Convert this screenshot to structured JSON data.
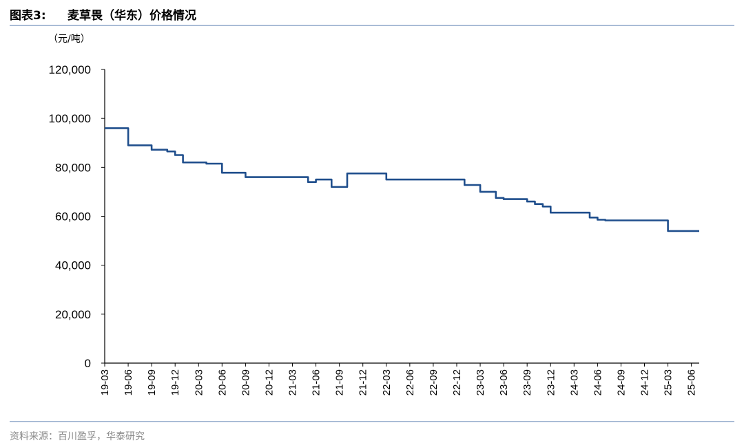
{
  "header": {
    "figure_number": "图表3:",
    "title": "麦草畏（华东）价格情况"
  },
  "footer": {
    "source": "资料来源：百川盈孚，华泰研究"
  },
  "chart_data": {
    "type": "line",
    "title": "麦草畏（华东）价格情况",
    "ylabel": "（元/吨）",
    "xlabel": "",
    "ylim": [
      0,
      120000
    ],
    "y_ticks": [
      "0",
      "20,000",
      "40,000",
      "60,000",
      "80,000",
      "100,000",
      "120,000"
    ],
    "y_tick_values": [
      0,
      20000,
      40000,
      60000,
      80000,
      100000,
      120000
    ],
    "x_ticks": [
      "19-03",
      "19-06",
      "19-09",
      "19-12",
      "20-03",
      "20-06",
      "20-09",
      "20-12",
      "21-03",
      "21-06",
      "21-09",
      "21-12",
      "22-03",
      "22-06",
      "22-09",
      "22-12",
      "23-03",
      "23-06",
      "23-09",
      "23-12",
      "24-03",
      "24-06",
      "24-09",
      "24-12",
      "25-03",
      "25-06"
    ],
    "xlim": [
      "2019-03",
      "2025-07"
    ],
    "grid": false,
    "line_color": "#1f4e8c",
    "series": [
      {
        "x": [
          "2019-03",
          "2019-05",
          "2019-06",
          "2019-08",
          "2019-09",
          "2019-10",
          "2019-11",
          "2019-12",
          "2020-01",
          "2020-03",
          "2020-04",
          "2020-05",
          "2020-06",
          "2020-07",
          "2020-08",
          "2020-09",
          "2020-10",
          "2021-04",
          "2021-05",
          "2021-06",
          "2021-07",
          "2021-08",
          "2021-09",
          "2021-10",
          "2021-11",
          "2021-12",
          "2022-01",
          "2022-02",
          "2022-03",
          "2022-12",
          "2023-01",
          "2023-03",
          "2023-04",
          "2023-05",
          "2023-06",
          "2023-08",
          "2023-09",
          "2023-10",
          "2023-11",
          "2023-12",
          "2024-01",
          "2024-04",
          "2024-05",
          "2024-06",
          "2024-07",
          "2025-02",
          "2025-03",
          "2025-07"
        ],
        "values": [
          96000,
          96000,
          89000,
          89000,
          87200,
          87200,
          86500,
          85000,
          82000,
          82000,
          81500,
          81500,
          77800,
          77800,
          77800,
          76000,
          76000,
          76000,
          74000,
          75000,
          75000,
          72000,
          72000,
          77500,
          77500,
          77500,
          77500,
          77500,
          75000,
          75000,
          72800,
          70000,
          70000,
          67500,
          67000,
          67000,
          66000,
          65000,
          64000,
          61500,
          61500,
          61500,
          59500,
          58600,
          58300,
          58300,
          54000,
          54000
        ]
      }
    ]
  }
}
